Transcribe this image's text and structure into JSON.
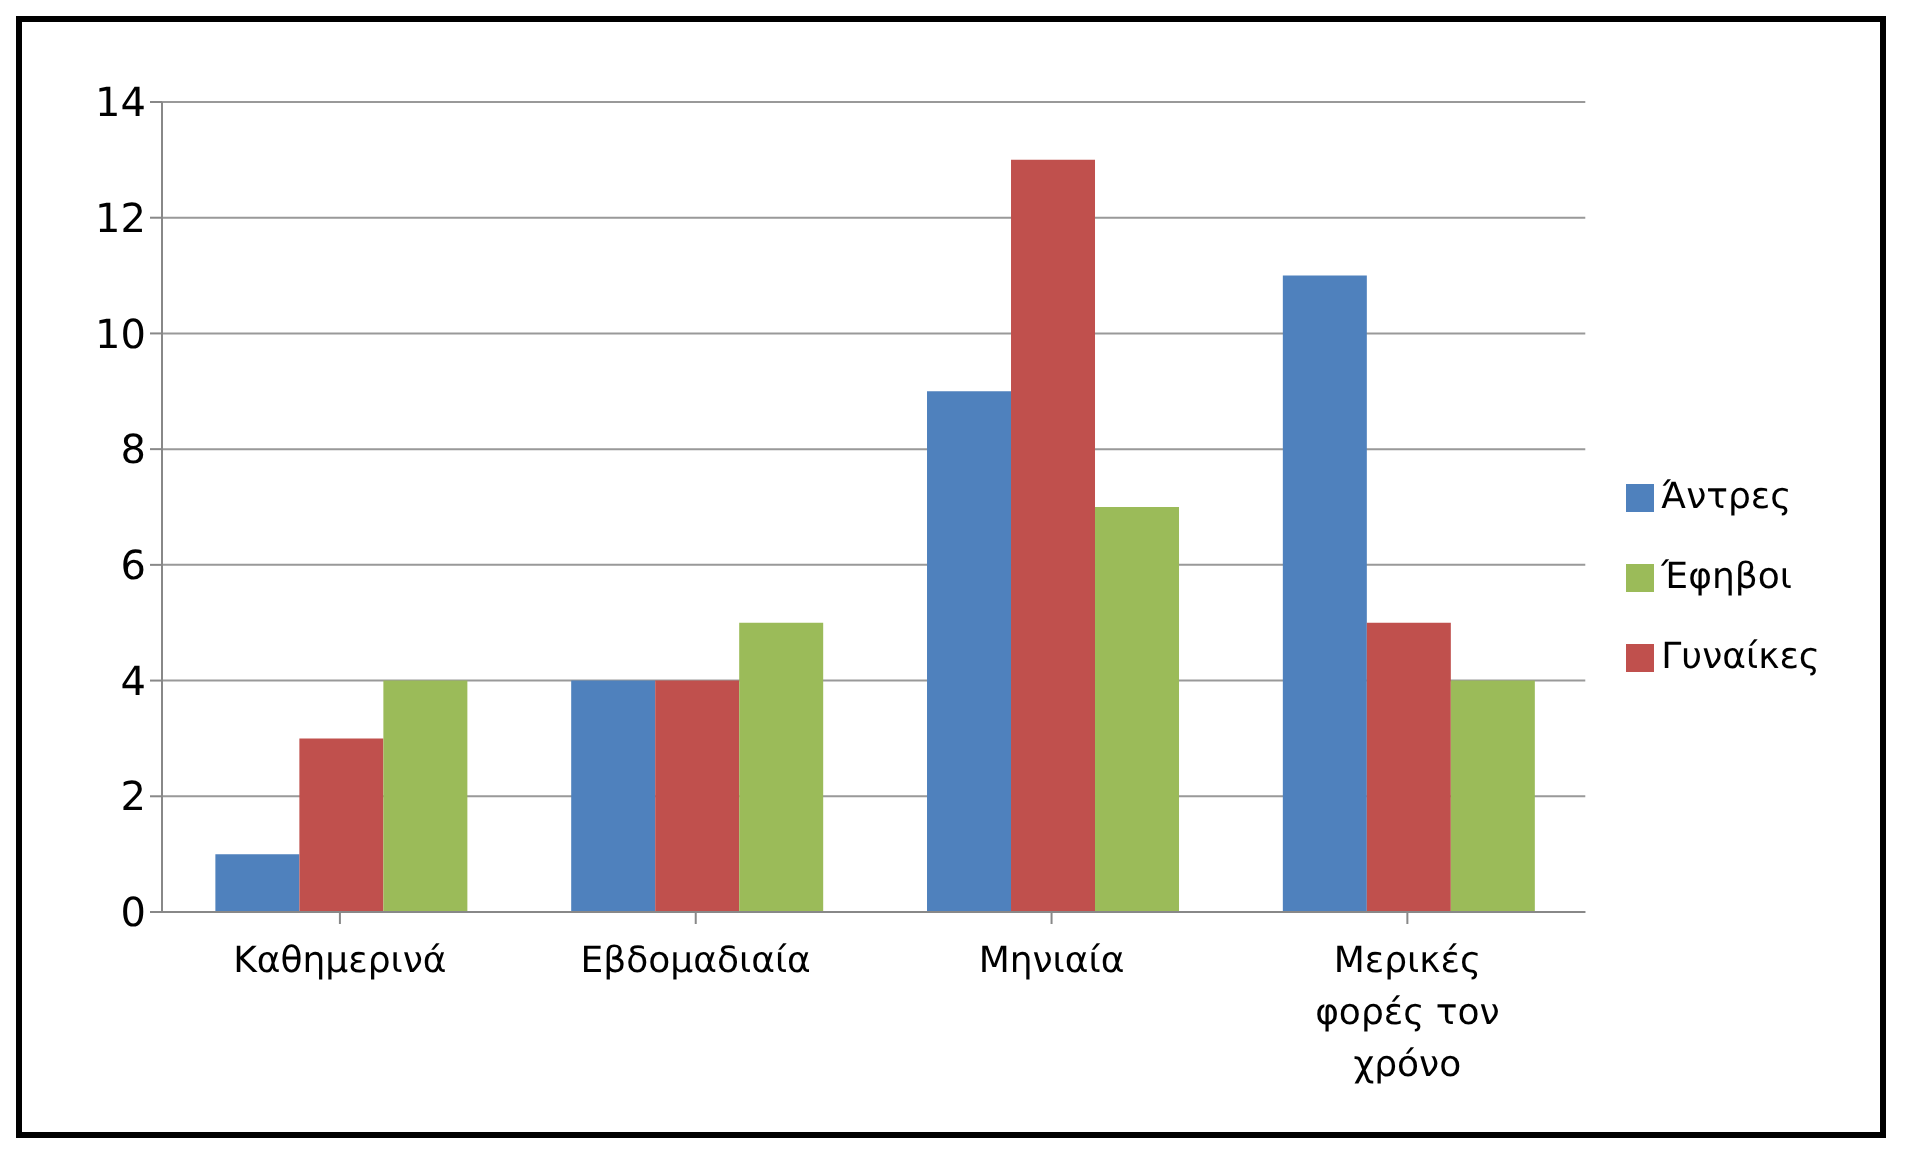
{
  "chart_data": {
    "type": "bar",
    "categories": [
      "Καθημερινά",
      "Εβδομαδιαία",
      "Μηνιαία",
      "Μερικές φορές τον χρόνο"
    ],
    "series": [
      {
        "name": "Άντρες",
        "color": "#4f81bd",
        "values": [
          1,
          4,
          9,
          11
        ]
      },
      {
        "name": "Γυναίκες",
        "color": "#c0504d",
        "values": [
          3,
          4,
          13,
          5
        ]
      },
      {
        "name": "Έφηβοι",
        "color": "#9bbb59",
        "values": [
          4,
          5,
          7,
          4
        ]
      }
    ],
    "ylim": [
      0,
      14
    ],
    "yticks": [
      0,
      2,
      4,
      6,
      8,
      10,
      12,
      14
    ],
    "grid": "y",
    "legend": "right"
  }
}
